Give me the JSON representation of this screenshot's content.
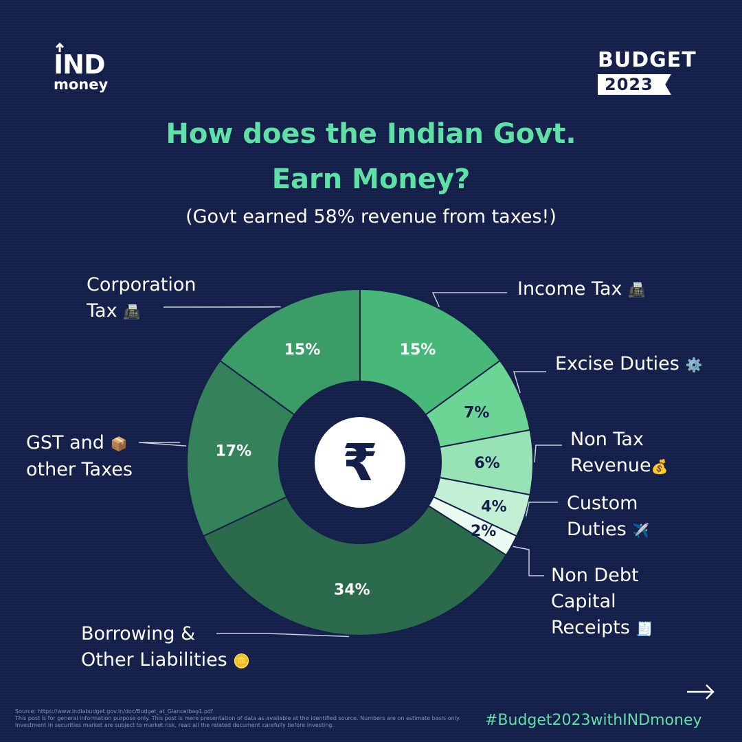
{
  "brand": {
    "logo_top": "IND",
    "logo_bottom": "money"
  },
  "badge": {
    "word": "BUDGET",
    "year": "2023"
  },
  "header": {
    "title_line1": "How does the Indian Govt.",
    "title_line2": "Earn Money?",
    "subtitle": "(Govt earned 58% revenue from taxes!)"
  },
  "center_symbol": "₹",
  "chart_data": {
    "type": "pie",
    "title": "How does the Indian Govt. Earn Money?",
    "subtitle": "(Govt earned 58% revenue from taxes!)",
    "unit": "%",
    "donut": true,
    "slices": [
      {
        "label": "Income Tax",
        "value": 15,
        "display": "15%",
        "color": "#47b877",
        "text_color": "#ffffff",
        "emoji": "📠"
      },
      {
        "label": "Excise Duties",
        "value": 7,
        "display": "7%",
        "color": "#6cd494",
        "text_color": "#14204a",
        "emoji": "⚙️"
      },
      {
        "label": "Non Tax Revenue",
        "value": 6,
        "display": "6%",
        "color": "#98e3b6",
        "text_color": "#14204a",
        "emoji": "💰"
      },
      {
        "label": "Custom Duties",
        "value": 4,
        "display": "4%",
        "color": "#c3f0d5",
        "text_color": "#14204a",
        "emoji": "✈️"
      },
      {
        "label": "Non Debt Capital Receipts",
        "value": 2,
        "display": "2%",
        "color": "#eafbf1",
        "text_color": "#14204a",
        "emoji": "🧾"
      },
      {
        "label": "Borrowing & Other Liabilities",
        "value": 34,
        "display": "34%",
        "color": "#2b6b4b",
        "text_color": "#ffffff",
        "emoji": "🪙"
      },
      {
        "label": "GST and other Taxes",
        "value": 17,
        "display": "17%",
        "color": "#33825a",
        "text_color": "#ffffff",
        "emoji": "📦"
      },
      {
        "label": "Corporation Tax",
        "value": 15,
        "display": "15%",
        "color": "#3b9c68",
        "text_color": "#ffffff",
        "emoji": "📠"
      }
    ]
  },
  "labels": {
    "corporation_tax": {
      "line1": "Corporation",
      "line2": "Tax"
    },
    "income_tax": {
      "line1": "Income Tax"
    },
    "excise_duties": {
      "line1": "Excise Duties"
    },
    "non_tax_revenue": {
      "line1": "Non Tax",
      "line2": "Revenue"
    },
    "custom_duties": {
      "line1": "Custom",
      "line2": "Duties"
    },
    "non_debt": {
      "line1": "Non Debt",
      "line2": "Capital",
      "line3": "Receipts"
    },
    "gst": {
      "line1": "GST and",
      "line2": "other Taxes"
    },
    "borrowing": {
      "line1": "Borrowing &",
      "line2": "Other Liabilities"
    }
  },
  "footer": {
    "source": "Source: https://www.indiabudget.gov.in/doc/Budget_at_Glance/bag1.pdf",
    "disclaimer": "This post is for general information purpose only. This post is mere presentation of data as available at the identified source. Numbers are on estimate basis only. Investment in securities market are subject to market risk, read all the related document carefully before investing.",
    "hashtag": "#Budget2023withINDmoney",
    "next_arrow": "→"
  },
  "colors": {
    "background": "#14204a",
    "accent": "#5fe0a6",
    "leader": "#c9cfdd"
  }
}
